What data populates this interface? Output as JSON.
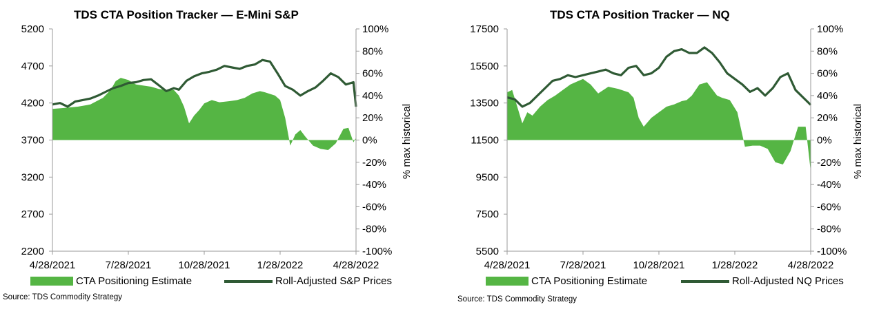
{
  "chart_data": [
    {
      "type": "area+line",
      "title": "TDS CTA Position Tracker — E-Mini S&P",
      "left_axis": {
        "ylim": [
          2200,
          5200
        ],
        "ticks": [
          "5200",
          "4700",
          "4200",
          "3700",
          "3200",
          "2700",
          "2200"
        ]
      },
      "right_axis": {
        "label": "% max historical",
        "ylim": [
          -100,
          100
        ],
        "ticks": [
          "100%",
          "80%",
          "60%",
          "40%",
          "20%",
          "0%",
          "-20%",
          "-40%",
          "-60%",
          "-80%",
          "-100%"
        ]
      },
      "x_ticks": [
        "4/28/2021",
        "7/28/2021",
        "10/28/2021",
        "1/28/2022",
        "4/28/2022"
      ],
      "x_range": [
        0,
        12
      ],
      "legend_position": "bottom",
      "series": [
        {
          "name": "CTA Positioning Estimate",
          "axis": "right",
          "kind": "area",
          "color": "#55b544",
          "x": [
            0,
            0.5,
            1,
            1.5,
            2,
            2.3,
            2.5,
            2.7,
            3,
            3.3,
            3.6,
            3.9,
            4.2,
            4.5,
            4.8,
            5.0,
            5.2,
            5.4,
            5.6,
            5.8,
            6.0,
            6.3,
            6.6,
            7.0,
            7.3,
            7.6,
            7.9,
            8.2,
            8.4,
            8.8,
            9.0,
            9.2,
            9.4,
            9.6,
            9.8,
            10.0,
            10.3,
            10.6,
            10.9,
            11.2,
            11.5,
            11.7,
            11.9,
            12
          ],
          "values": [
            28,
            29,
            30,
            32,
            38,
            45,
            53,
            56,
            54,
            50,
            49,
            48,
            46,
            45,
            45,
            40,
            30,
            15,
            22,
            27,
            33,
            36,
            34,
            35,
            36,
            38,
            42,
            44,
            43,
            40,
            36,
            20,
            -5,
            5,
            9,
            3,
            -5,
            -8,
            -9,
            -3,
            10,
            11,
            -2,
            2
          ]
        },
        {
          "name": "Roll-Adjusted S&P Prices",
          "axis": "left",
          "kind": "line",
          "color": "#2f5a34",
          "x": [
            0,
            0.3,
            0.6,
            0.9,
            1.2,
            1.5,
            1.8,
            2.1,
            2.4,
            2.7,
            3.0,
            3.3,
            3.6,
            3.9,
            4.2,
            4.5,
            4.8,
            5.0,
            5.3,
            5.6,
            5.9,
            6.2,
            6.5,
            6.8,
            7.1,
            7.4,
            7.7,
            8.0,
            8.3,
            8.6,
            8.9,
            9.2,
            9.5,
            9.8,
            10.1,
            10.4,
            10.7,
            11.0,
            11.3,
            11.6,
            11.9,
            12
          ],
          "values": [
            4180,
            4200,
            4150,
            4220,
            4240,
            4260,
            4300,
            4350,
            4400,
            4430,
            4470,
            4480,
            4510,
            4520,
            4440,
            4360,
            4400,
            4380,
            4500,
            4560,
            4600,
            4620,
            4650,
            4700,
            4680,
            4660,
            4700,
            4720,
            4780,
            4760,
            4600,
            4430,
            4380,
            4300,
            4360,
            4410,
            4500,
            4600,
            4550,
            4450,
            4480,
            4150
          ]
        }
      ]
    },
    {
      "type": "area+line",
      "title": "TDS CTA Position Tracker —  NQ",
      "left_axis": {
        "ylim": [
          5500,
          17500
        ],
        "ticks": [
          "17500",
          "15500",
          "13500",
          "11500",
          "9500",
          "7500",
          "5500"
        ]
      },
      "right_axis": {
        "label": "% max historical",
        "ylim": [
          -100,
          100
        ],
        "ticks": [
          "100%",
          "80%",
          "60%",
          "40%",
          "20%",
          "0%",
          "-20%",
          "-40%",
          "-60%",
          "-80%",
          "-100%"
        ]
      },
      "x_ticks": [
        "4/28/2021",
        "7/28/2021",
        "10/28/2021",
        "1/28/2022",
        "4/28/2022"
      ],
      "x_range": [
        0,
        12
      ],
      "legend_position": "bottom",
      "series": [
        {
          "name": "CTA Positioning Estimate",
          "axis": "right",
          "kind": "area",
          "color": "#55b544",
          "x": [
            0,
            0.2,
            0.4,
            0.6,
            0.8,
            1.0,
            1.3,
            1.6,
            1.9,
            2.2,
            2.5,
            2.8,
            3.0,
            3.3,
            3.6,
            4.0,
            4.4,
            4.8,
            5.0,
            5.2,
            5.4,
            5.7,
            6.0,
            6.3,
            6.6,
            6.9,
            7.1,
            7.3,
            7.6,
            7.9,
            8.1,
            8.3,
            8.5,
            8.8,
            9.1,
            9.4,
            9.7,
            10.0,
            10.3,
            10.6,
            10.9,
            11.2,
            11.5,
            11.8,
            12
          ],
          "values": [
            43,
            45,
            30,
            15,
            25,
            22,
            30,
            36,
            40,
            45,
            50,
            53,
            55,
            50,
            42,
            48,
            46,
            43,
            38,
            20,
            12,
            20,
            25,
            30,
            32,
            35,
            36,
            40,
            50,
            52,
            46,
            40,
            38,
            36,
            25,
            -6,
            -5,
            -5,
            -8,
            -20,
            -22,
            -10,
            12,
            12,
            -28
          ]
        },
        {
          "name": "Roll-Adjusted NQ Prices",
          "axis": "left",
          "kind": "line",
          "color": "#2f5a34",
          "x": [
            0,
            0.3,
            0.6,
            0.9,
            1.2,
            1.5,
            1.8,
            2.1,
            2.4,
            2.7,
            3.0,
            3.3,
            3.6,
            3.9,
            4.2,
            4.5,
            4.8,
            5.1,
            5.4,
            5.7,
            6.0,
            6.3,
            6.6,
            6.9,
            7.2,
            7.5,
            7.8,
            8.1,
            8.4,
            8.7,
            9.0,
            9.3,
            9.6,
            9.9,
            10.2,
            10.5,
            10.8,
            11.1,
            11.4,
            11.7,
            12
          ],
          "values": [
            13800,
            13700,
            13300,
            13500,
            13900,
            14300,
            14700,
            14800,
            15000,
            14900,
            15000,
            15100,
            15200,
            15300,
            15100,
            15000,
            15400,
            15500,
            15000,
            15100,
            15400,
            16000,
            16300,
            16400,
            16200,
            16200,
            16500,
            16200,
            15700,
            15100,
            14800,
            14500,
            14100,
            14300,
            13900,
            14300,
            14900,
            15100,
            14200,
            13800,
            13400
          ]
        }
      ]
    }
  ],
  "legend": {
    "area_label": "CTA Positioning Estimate",
    "line_label_1": "Roll-Adjusted S&P Prices",
    "line_label_2": "Roll-Adjusted NQ Prices"
  },
  "source": "Source: TDS Commodity Strategy",
  "colors": {
    "area": "#55b544",
    "line": "#2f5a34",
    "axis": "#9a9a9a"
  }
}
